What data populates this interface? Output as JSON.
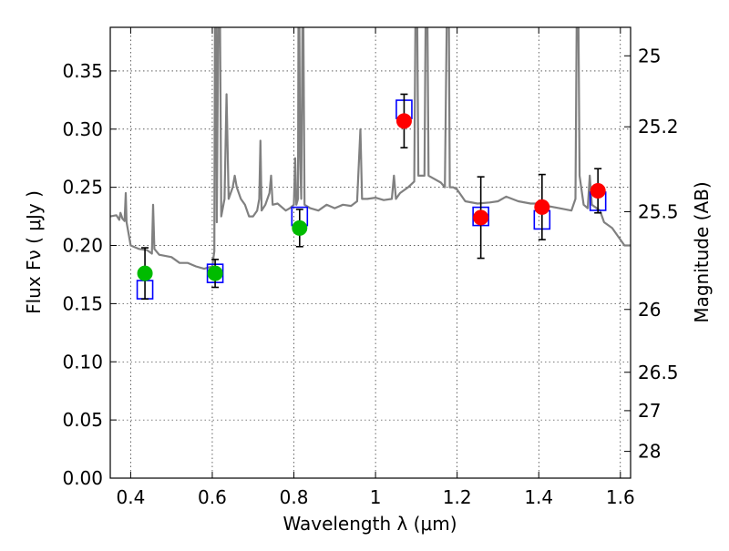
{
  "chart_data": {
    "type": "scatter",
    "title": "",
    "xlabel": "Wavelength  λ (μm)",
    "ylabel": "Flux  Fν  ( μJy )",
    "ylabel_right": "Magnitude (AB)",
    "xlim": [
      0.35,
      1.625
    ],
    "ylim": [
      0.0,
      0.3875
    ],
    "grid": true,
    "x_ticks": [
      0.4,
      0.6,
      0.8,
      1.0,
      1.2,
      1.4,
      1.6
    ],
    "x_tick_labels": [
      "0.4",
      "0.6",
      "0.8",
      "1",
      "1.2",
      "1.4",
      "1.6"
    ],
    "y_ticks": [
      0.0,
      0.05,
      0.1,
      0.15,
      0.2,
      0.25,
      0.3,
      0.35
    ],
    "y_tick_labels": [
      "0.00",
      "0.05",
      "0.10",
      "0.15",
      "0.20",
      "0.25",
      "0.30",
      "0.35"
    ],
    "y2_ticks": [
      {
        "label": "25",
        "flux": 0.363
      },
      {
        "label": "25.2",
        "flux": 0.302
      },
      {
        "label": "25.5",
        "flux": 0.229
      },
      {
        "label": "26",
        "flux": 0.145
      },
      {
        "label": "26.5",
        "flux": 0.091
      },
      {
        "label": "27",
        "flux": 0.058
      },
      {
        "label": "28",
        "flux": 0.023
      }
    ],
    "series": [
      {
        "kind": "model_spectrum",
        "color": "#808080",
        "points": [
          [
            0.35,
            0.225
          ],
          [
            0.365,
            0.226
          ],
          [
            0.372,
            0.222
          ],
          [
            0.375,
            0.228
          ],
          [
            0.38,
            0.223
          ],
          [
            0.385,
            0.221
          ],
          [
            0.388,
            0.245
          ],
          [
            0.39,
            0.22
          ],
          [
            0.4,
            0.2
          ],
          [
            0.42,
            0.197
          ],
          [
            0.44,
            0.196
          ],
          [
            0.452,
            0.193
          ],
          [
            0.455,
            0.235
          ],
          [
            0.458,
            0.197
          ],
          [
            0.47,
            0.192
          ],
          [
            0.5,
            0.19
          ],
          [
            0.52,
            0.185
          ],
          [
            0.54,
            0.185
          ],
          [
            0.56,
            0.182
          ],
          [
            0.58,
            0.18
          ],
          [
            0.6,
            0.182
          ],
          [
            0.605,
            0.195
          ],
          [
            0.608,
            0.56
          ],
          [
            0.611,
            0.22
          ],
          [
            0.617,
            0.5
          ],
          [
            0.622,
            0.225
          ],
          [
            0.63,
            0.24
          ],
          [
            0.635,
            0.33
          ],
          [
            0.64,
            0.24
          ],
          [
            0.65,
            0.25
          ],
          [
            0.655,
            0.26
          ],
          [
            0.66,
            0.25
          ],
          [
            0.67,
            0.24
          ],
          [
            0.68,
            0.235
          ],
          [
            0.69,
            0.225
          ],
          [
            0.7,
            0.225
          ],
          [
            0.71,
            0.23
          ],
          [
            0.715,
            0.24
          ],
          [
            0.718,
            0.29
          ],
          [
            0.721,
            0.23
          ],
          [
            0.73,
            0.235
          ],
          [
            0.74,
            0.245
          ],
          [
            0.744,
            0.26
          ],
          [
            0.748,
            0.235
          ],
          [
            0.76,
            0.236
          ],
          [
            0.78,
            0.23
          ],
          [
            0.79,
            0.232
          ],
          [
            0.8,
            0.235
          ],
          [
            0.803,
            0.275
          ],
          [
            0.806,
            0.235
          ],
          [
            0.81,
            0.24
          ],
          [
            0.812,
            0.5
          ],
          [
            0.815,
            0.28
          ],
          [
            0.818,
            0.24
          ],
          [
            0.822,
            0.45
          ],
          [
            0.826,
            0.235
          ],
          [
            0.84,
            0.232
          ],
          [
            0.86,
            0.23
          ],
          [
            0.88,
            0.235
          ],
          [
            0.9,
            0.232
          ],
          [
            0.92,
            0.235
          ],
          [
            0.94,
            0.234
          ],
          [
            0.955,
            0.238
          ],
          [
            0.963,
            0.3
          ],
          [
            0.967,
            0.24
          ],
          [
            0.98,
            0.24
          ],
          [
            1.0,
            0.241
          ],
          [
            1.02,
            0.239
          ],
          [
            1.04,
            0.24
          ],
          [
            1.045,
            0.26
          ],
          [
            1.05,
            0.24
          ],
          [
            1.06,
            0.245
          ],
          [
            1.08,
            0.25
          ],
          [
            1.095,
            0.255
          ],
          [
            1.1,
            0.5
          ],
          [
            1.105,
            0.26
          ],
          [
            1.12,
            0.26
          ],
          [
            1.125,
            0.5
          ],
          [
            1.13,
            0.26
          ],
          [
            1.14,
            0.258
          ],
          [
            1.16,
            0.254
          ],
          [
            1.17,
            0.25
          ],
          [
            1.178,
            0.5
          ],
          [
            1.182,
            0.25
          ],
          [
            1.19,
            0.25
          ],
          [
            1.2,
            0.248
          ],
          [
            1.22,
            0.238
          ],
          [
            1.25,
            0.236
          ],
          [
            1.28,
            0.237
          ],
          [
            1.3,
            0.238
          ],
          [
            1.32,
            0.242
          ],
          [
            1.35,
            0.238
          ],
          [
            1.38,
            0.236
          ],
          [
            1.4,
            0.236
          ],
          [
            1.42,
            0.234
          ],
          [
            1.45,
            0.232
          ],
          [
            1.48,
            0.23
          ],
          [
            1.49,
            0.24
          ],
          [
            1.495,
            0.5
          ],
          [
            1.5,
            0.26
          ],
          [
            1.51,
            0.235
          ],
          [
            1.52,
            0.232
          ],
          [
            1.525,
            0.26
          ],
          [
            1.53,
            0.235
          ],
          [
            1.55,
            0.23
          ],
          [
            1.56,
            0.22
          ],
          [
            1.58,
            0.215
          ],
          [
            1.6,
            0.205
          ],
          [
            1.61,
            0.2
          ],
          [
            1.625,
            0.2
          ]
        ]
      },
      {
        "kind": "model_photometry",
        "marker": "open-square",
        "color": "#0000ff",
        "points": [
          [
            0.435,
            0.162
          ],
          [
            0.607,
            0.176
          ],
          [
            0.814,
            0.225
          ],
          [
            1.07,
            0.317
          ],
          [
            1.258,
            0.225
          ],
          [
            1.408,
            0.222
          ],
          [
            1.545,
            0.238
          ]
        ]
      },
      {
        "kind": "observed_green",
        "marker": "filled-circle",
        "color": "#00bb00",
        "points": [
          {
            "x": 0.435,
            "y": 0.176,
            "err": 0.022
          },
          {
            "x": 0.607,
            "y": 0.176,
            "err": 0.012
          },
          {
            "x": 0.814,
            "y": 0.215,
            "err": 0.016
          }
        ]
      },
      {
        "kind": "observed_red",
        "marker": "filled-circle",
        "color": "#ff0000",
        "points": [
          {
            "x": 1.07,
            "y": 0.307,
            "err": 0.023
          },
          {
            "x": 1.258,
            "y": 0.224,
            "err": 0.035
          },
          {
            "x": 1.408,
            "y": 0.233,
            "err": 0.028
          },
          {
            "x": 1.545,
            "y": 0.247,
            "err": 0.019
          }
        ]
      }
    ]
  }
}
